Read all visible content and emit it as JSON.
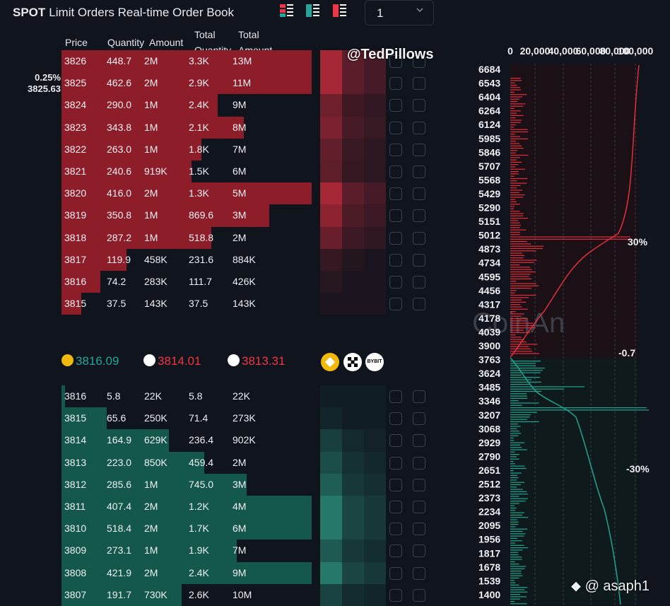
{
  "header": {
    "title_bold": "SPOT",
    "title_rest": "Limit Orders Real-time Order Book",
    "selector_value": "1"
  },
  "columns": {
    "price": "Price",
    "quantity": "Quantity",
    "amount": "Amount",
    "total_quantity_1": "Total",
    "total_quantity_2": "Quantity",
    "total_amount_1": "Total",
    "total_amount_2": "Amount"
  },
  "side": {
    "pct": "0.25%",
    "price": "3825.63"
  },
  "asks": [
    {
      "price": "3826",
      "qty": "448.7",
      "amount": "2M",
      "total_qty": "3.3K",
      "total_amount": "13M",
      "depth": 0.77
    },
    {
      "price": "3825",
      "qty": "462.6",
      "amount": "2M",
      "total_qty": "2.9K",
      "total_amount": "11M",
      "depth": 0.77
    },
    {
      "price": "3824",
      "qty": "290.0",
      "amount": "1M",
      "total_qty": "2.4K",
      "total_amount": "9M",
      "depth": 0.48
    },
    {
      "price": "3823",
      "qty": "343.8",
      "amount": "1M",
      "total_qty": "2.1K",
      "total_amount": "8M",
      "depth": 0.56
    },
    {
      "price": "3822",
      "qty": "263.0",
      "amount": "1M",
      "total_qty": "1.8K",
      "total_amount": "7M",
      "depth": 0.43
    },
    {
      "price": "3821",
      "qty": "240.6",
      "amount": "919K",
      "total_qty": "1.5K",
      "total_amount": "6M",
      "depth": 0.4
    },
    {
      "price": "3820",
      "qty": "416.0",
      "amount": "2M",
      "total_qty": "1.3K",
      "total_amount": "5M",
      "depth": 0.77
    },
    {
      "price": "3819",
      "qty": "350.8",
      "amount": "1M",
      "total_qty": "869.6",
      "total_amount": "3M",
      "depth": 0.64
    },
    {
      "price": "3818",
      "qty": "287.2",
      "amount": "1M",
      "total_qty": "518.8",
      "total_amount": "2M",
      "depth": 0.46
    },
    {
      "price": "3817",
      "qty": "119.9",
      "amount": "458K",
      "total_qty": "231.6",
      "total_amount": "884K",
      "depth": 0.2
    },
    {
      "price": "3816",
      "qty": "74.2",
      "amount": "283K",
      "total_qty": "111.7",
      "total_amount": "426K",
      "depth": 0.12
    },
    {
      "price": "3815",
      "qty": "37.5",
      "amount": "143K",
      "total_qty": "37.5",
      "total_amount": "143K",
      "depth": 0.06
    }
  ],
  "mid_prices": [
    {
      "value": "3816.09",
      "color": "#26a69a",
      "icon": "binance-icon"
    },
    {
      "value": "3814.01",
      "color": "#f23645",
      "icon": "okx-icon"
    },
    {
      "value": "3813.31",
      "color": "#f23645",
      "icon": "bybit-icon"
    }
  ],
  "bybit_label": "BYBIT",
  "bids": [
    {
      "price": "3816",
      "qty": "5.8",
      "amount": "22K",
      "total_qty": "5.8",
      "total_amount": "22K",
      "depth": 0.01
    },
    {
      "price": "3815",
      "qty": "65.6",
      "amount": "250K",
      "total_qty": "71.4",
      "total_amount": "273K",
      "depth": 0.14
    },
    {
      "price": "3814",
      "qty": "164.9",
      "amount": "629K",
      "total_qty": "236.4",
      "total_amount": "902K",
      "depth": 0.33
    },
    {
      "price": "3813",
      "qty": "223.0",
      "amount": "850K",
      "total_qty": "459.4",
      "total_amount": "2M",
      "depth": 0.44
    },
    {
      "price": "3812",
      "qty": "285.6",
      "amount": "1M",
      "total_qty": "745.0",
      "total_amount": "3M",
      "depth": 0.57
    },
    {
      "price": "3811",
      "qty": "407.4",
      "amount": "2M",
      "total_qty": "1.2K",
      "total_amount": "4M",
      "depth": 0.77
    },
    {
      "price": "3810",
      "qty": "518.4",
      "amount": "2M",
      "total_qty": "1.7K",
      "total_amount": "6M",
      "depth": 0.77
    },
    {
      "price": "3809",
      "qty": "273.1",
      "amount": "1M",
      "total_qty": "1.9K",
      "total_amount": "7M",
      "depth": 0.54
    },
    {
      "price": "3808",
      "qty": "421.9",
      "amount": "2M",
      "total_qty": "2.4K",
      "total_amount": "9M",
      "depth": 0.77
    },
    {
      "price": "3807",
      "qty": "191.7",
      "amount": "730K",
      "total_qty": "2.6K",
      "total_amount": "10M",
      "depth": 0.37
    }
  ],
  "watermarks": {
    "top": "@TedPillows",
    "bottom": "@ asaph1",
    "chart": "CoinAn"
  },
  "depth_chart": {
    "x_labels": [
      "0",
      "20,000",
      "40,000",
      "60,000",
      "80,000",
      "100,000"
    ],
    "y_labels": [
      "6684",
      "6543",
      "6404",
      "6264",
      "6124",
      "5985",
      "5846",
      "5707",
      "5568",
      "5429",
      "5290",
      "5151",
      "5012",
      "4873",
      "4734",
      "4595",
      "4456",
      "4317",
      "4178",
      "4039",
      "3900",
      "3763",
      "3624",
      "3485",
      "3346",
      "3207",
      "3068",
      "2929",
      "2790",
      "2651",
      "2512",
      "2373",
      "2234",
      "2095",
      "1956",
      "1817",
      "1678",
      "1539",
      "1400"
    ],
    "pct_top": "30%",
    "pct_mid": "-0.7",
    "pct_bottom": "-30%",
    "ask_color": "#e0303d",
    "bid_color": "#1fa58f"
  },
  "colors": {
    "ask": "#8e1d2a",
    "bid": "#14584c",
    "bg": "#0f141d"
  }
}
